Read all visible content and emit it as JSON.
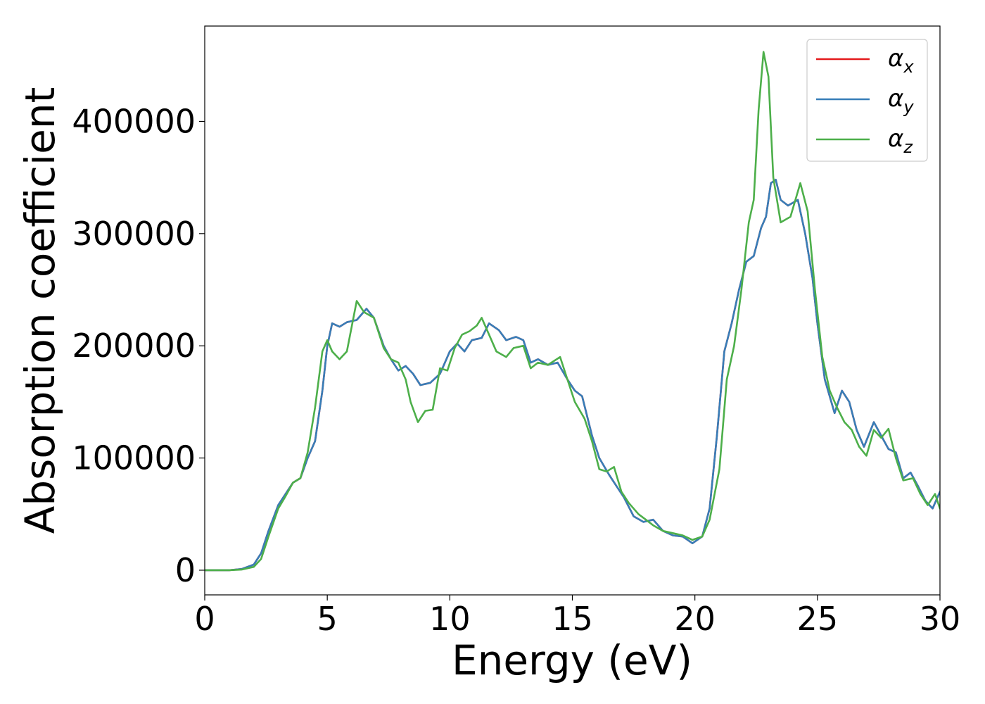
{
  "chart_data": {
    "type": "line",
    "title": "",
    "xlabel": "Energy (eV)",
    "ylabel": "Absorption coefficient",
    "xlim": [
      0,
      30
    ],
    "ylim": [
      -22000,
      485000
    ],
    "xticks": [
      0,
      5,
      10,
      15,
      20,
      25,
      30
    ],
    "yticks": [
      0,
      100000,
      200000,
      300000,
      400000
    ],
    "grid": false,
    "legend_position": "top-right",
    "series": [
      {
        "name": "α",
        "subscript": "x",
        "color": "#e41a1c",
        "points": [
          [
            0,
            0
          ],
          [
            1,
            0
          ],
          [
            1.5,
            1000
          ],
          [
            2,
            5000
          ],
          [
            2.3,
            15000
          ],
          [
            2.6,
            35000
          ],
          [
            3,
            58000
          ],
          [
            3.3,
            68000
          ],
          [
            3.6,
            78000
          ],
          [
            3.9,
            82000
          ],
          [
            4.2,
            100000
          ],
          [
            4.5,
            115000
          ],
          [
            4.8,
            160000
          ],
          [
            5,
            200000
          ],
          [
            5.2,
            220000
          ],
          [
            5.5,
            217000
          ],
          [
            5.8,
            221000
          ],
          [
            6.2,
            223000
          ],
          [
            6.6,
            233000
          ],
          [
            6.9,
            225000
          ],
          [
            7.3,
            200000
          ],
          [
            7.6,
            188000
          ],
          [
            7.9,
            178000
          ],
          [
            8.2,
            182000
          ],
          [
            8.5,
            175000
          ],
          [
            8.8,
            165000
          ],
          [
            9.2,
            167000
          ],
          [
            9.6,
            175000
          ],
          [
            10,
            195000
          ],
          [
            10.3,
            202000
          ],
          [
            10.6,
            195000
          ],
          [
            10.9,
            205000
          ],
          [
            11.3,
            207000
          ],
          [
            11.6,
            220000
          ],
          [
            12,
            214000
          ],
          [
            12.3,
            205000
          ],
          [
            12.7,
            208000
          ],
          [
            13,
            205000
          ],
          [
            13.3,
            185000
          ],
          [
            13.6,
            188000
          ],
          [
            14,
            183000
          ],
          [
            14.4,
            185000
          ],
          [
            14.8,
            170000
          ],
          [
            15.1,
            160000
          ],
          [
            15.4,
            155000
          ],
          [
            15.8,
            120000
          ],
          [
            16.1,
            100000
          ],
          [
            16.5,
            85000
          ],
          [
            16.8,
            75000
          ],
          [
            17.1,
            65000
          ],
          [
            17.5,
            48000
          ],
          [
            17.9,
            43000
          ],
          [
            18.3,
            45000
          ],
          [
            18.7,
            35000
          ],
          [
            19.1,
            31000
          ],
          [
            19.5,
            30000
          ],
          [
            19.9,
            24000
          ],
          [
            20.3,
            30000
          ],
          [
            20.6,
            55000
          ],
          [
            20.9,
            120000
          ],
          [
            21.2,
            195000
          ],
          [
            21.5,
            220000
          ],
          [
            21.8,
            250000
          ],
          [
            22.1,
            275000
          ],
          [
            22.4,
            280000
          ],
          [
            22.7,
            305000
          ],
          [
            22.9,
            315000
          ],
          [
            23.1,
            345000
          ],
          [
            23.3,
            348000
          ],
          [
            23.5,
            330000
          ],
          [
            23.8,
            325000
          ],
          [
            24.2,
            330000
          ],
          [
            24.5,
            300000
          ],
          [
            24.8,
            260000
          ],
          [
            25,
            220000
          ],
          [
            25.3,
            170000
          ],
          [
            25.7,
            140000
          ],
          [
            26,
            160000
          ],
          [
            26.3,
            150000
          ],
          [
            26.6,
            125000
          ],
          [
            26.9,
            110000
          ],
          [
            27.3,
            132000
          ],
          [
            27.6,
            120000
          ],
          [
            27.9,
            108000
          ],
          [
            28.2,
            105000
          ],
          [
            28.5,
            82000
          ],
          [
            28.8,
            87000
          ],
          [
            29.1,
            75000
          ],
          [
            29.4,
            62000
          ],
          [
            29.7,
            55000
          ],
          [
            30,
            70000
          ]
        ]
      },
      {
        "name": "α",
        "subscript": "y",
        "color": "#377eb8",
        "points": [
          [
            0,
            0
          ],
          [
            1,
            0
          ],
          [
            1.5,
            1000
          ],
          [
            2,
            5000
          ],
          [
            2.3,
            15000
          ],
          [
            2.6,
            35000
          ],
          [
            3,
            58000
          ],
          [
            3.3,
            68000
          ],
          [
            3.6,
            78000
          ],
          [
            3.9,
            82000
          ],
          [
            4.2,
            100000
          ],
          [
            4.5,
            115000
          ],
          [
            4.8,
            160000
          ],
          [
            5,
            200000
          ],
          [
            5.2,
            220000
          ],
          [
            5.5,
            217000
          ],
          [
            5.8,
            221000
          ],
          [
            6.2,
            223000
          ],
          [
            6.6,
            233000
          ],
          [
            6.9,
            225000
          ],
          [
            7.3,
            200000
          ],
          [
            7.6,
            188000
          ],
          [
            7.9,
            178000
          ],
          [
            8.2,
            182000
          ],
          [
            8.5,
            175000
          ],
          [
            8.8,
            165000
          ],
          [
            9.2,
            167000
          ],
          [
            9.6,
            175000
          ],
          [
            10,
            195000
          ],
          [
            10.3,
            202000
          ],
          [
            10.6,
            195000
          ],
          [
            10.9,
            205000
          ],
          [
            11.3,
            207000
          ],
          [
            11.6,
            220000
          ],
          [
            12,
            214000
          ],
          [
            12.3,
            205000
          ],
          [
            12.7,
            208000
          ],
          [
            13,
            205000
          ],
          [
            13.3,
            185000
          ],
          [
            13.6,
            188000
          ],
          [
            14,
            183000
          ],
          [
            14.4,
            185000
          ],
          [
            14.8,
            170000
          ],
          [
            15.1,
            160000
          ],
          [
            15.4,
            155000
          ],
          [
            15.8,
            120000
          ],
          [
            16.1,
            100000
          ],
          [
            16.5,
            85000
          ],
          [
            16.8,
            75000
          ],
          [
            17.1,
            65000
          ],
          [
            17.5,
            48000
          ],
          [
            17.9,
            43000
          ],
          [
            18.3,
            45000
          ],
          [
            18.7,
            35000
          ],
          [
            19.1,
            31000
          ],
          [
            19.5,
            30000
          ],
          [
            19.9,
            24000
          ],
          [
            20.3,
            30000
          ],
          [
            20.6,
            55000
          ],
          [
            20.9,
            120000
          ],
          [
            21.2,
            195000
          ],
          [
            21.5,
            220000
          ],
          [
            21.8,
            250000
          ],
          [
            22.1,
            275000
          ],
          [
            22.4,
            280000
          ],
          [
            22.7,
            305000
          ],
          [
            22.9,
            315000
          ],
          [
            23.1,
            345000
          ],
          [
            23.3,
            348000
          ],
          [
            23.5,
            330000
          ],
          [
            23.8,
            325000
          ],
          [
            24.2,
            330000
          ],
          [
            24.5,
            300000
          ],
          [
            24.8,
            260000
          ],
          [
            25,
            220000
          ],
          [
            25.3,
            170000
          ],
          [
            25.7,
            140000
          ],
          [
            26,
            160000
          ],
          [
            26.3,
            150000
          ],
          [
            26.6,
            125000
          ],
          [
            26.9,
            110000
          ],
          [
            27.3,
            132000
          ],
          [
            27.6,
            120000
          ],
          [
            27.9,
            108000
          ],
          [
            28.2,
            105000
          ],
          [
            28.5,
            82000
          ],
          [
            28.8,
            87000
          ],
          [
            29.1,
            75000
          ],
          [
            29.4,
            62000
          ],
          [
            29.7,
            55000
          ],
          [
            30,
            70000
          ]
        ]
      },
      {
        "name": "α",
        "subscript": "z",
        "color": "#4daf4a",
        "points": [
          [
            0,
            0
          ],
          [
            1,
            0
          ],
          [
            1.5,
            500
          ],
          [
            2,
            3000
          ],
          [
            2.3,
            10000
          ],
          [
            2.6,
            30000
          ],
          [
            3,
            55000
          ],
          [
            3.3,
            66000
          ],
          [
            3.6,
            78000
          ],
          [
            3.9,
            82000
          ],
          [
            4.2,
            105000
          ],
          [
            4.5,
            145000
          ],
          [
            4.8,
            195000
          ],
          [
            5,
            205000
          ],
          [
            5.2,
            195000
          ],
          [
            5.5,
            188000
          ],
          [
            5.8,
            195000
          ],
          [
            6.2,
            240000
          ],
          [
            6.5,
            230000
          ],
          [
            6.9,
            225000
          ],
          [
            7.3,
            198000
          ],
          [
            7.6,
            188000
          ],
          [
            7.9,
            185000
          ],
          [
            8.2,
            170000
          ],
          [
            8.4,
            150000
          ],
          [
            8.7,
            132000
          ],
          [
            9,
            142000
          ],
          [
            9.3,
            143000
          ],
          [
            9.6,
            180000
          ],
          [
            9.9,
            178000
          ],
          [
            10.2,
            198000
          ],
          [
            10.5,
            210000
          ],
          [
            10.8,
            213000
          ],
          [
            11.1,
            218000
          ],
          [
            11.3,
            225000
          ],
          [
            11.6,
            210000
          ],
          [
            11.9,
            195000
          ],
          [
            12.3,
            190000
          ],
          [
            12.6,
            198000
          ],
          [
            13,
            200000
          ],
          [
            13.3,
            180000
          ],
          [
            13.6,
            185000
          ],
          [
            14,
            183000
          ],
          [
            14.5,
            190000
          ],
          [
            14.8,
            170000
          ],
          [
            15.1,
            150000
          ],
          [
            15.5,
            135000
          ],
          [
            15.8,
            115000
          ],
          [
            16.1,
            90000
          ],
          [
            16.4,
            88000
          ],
          [
            16.7,
            92000
          ],
          [
            17,
            70000
          ],
          [
            17.3,
            60000
          ],
          [
            17.7,
            50000
          ],
          [
            18,
            45000
          ],
          [
            18.3,
            40000
          ],
          [
            18.7,
            35000
          ],
          [
            19.1,
            33000
          ],
          [
            19.5,
            31000
          ],
          [
            19.9,
            27000
          ],
          [
            20.3,
            30000
          ],
          [
            20.6,
            45000
          ],
          [
            21,
            90000
          ],
          [
            21.3,
            170000
          ],
          [
            21.6,
            200000
          ],
          [
            21.9,
            250000
          ],
          [
            22.2,
            310000
          ],
          [
            22.4,
            330000
          ],
          [
            22.6,
            410000
          ],
          [
            22.8,
            462000
          ],
          [
            23,
            440000
          ],
          [
            23.2,
            350000
          ],
          [
            23.5,
            310000
          ],
          [
            23.9,
            315000
          ],
          [
            24.3,
            345000
          ],
          [
            24.6,
            320000
          ],
          [
            24.9,
            250000
          ],
          [
            25.2,
            190000
          ],
          [
            25.5,
            160000
          ],
          [
            25.8,
            145000
          ],
          [
            26.1,
            132000
          ],
          [
            26.4,
            125000
          ],
          [
            26.7,
            110000
          ],
          [
            27,
            102000
          ],
          [
            27.3,
            125000
          ],
          [
            27.6,
            118000
          ],
          [
            27.9,
            126000
          ],
          [
            28.2,
            100000
          ],
          [
            28.5,
            80000
          ],
          [
            28.9,
            82000
          ],
          [
            29.2,
            68000
          ],
          [
            29.5,
            58000
          ],
          [
            29.8,
            68000
          ],
          [
            30,
            55000
          ]
        ]
      }
    ]
  }
}
